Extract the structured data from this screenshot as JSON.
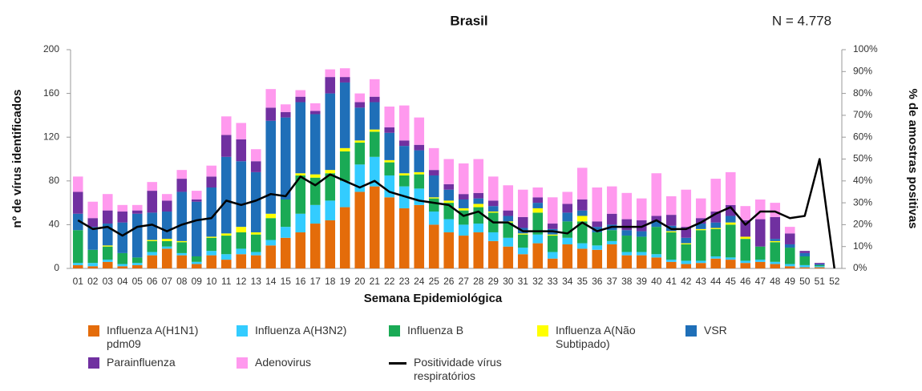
{
  "chart_data": {
    "type": "bar",
    "stacked": true,
    "title": "Brasil",
    "subtitle": "N = 4.778",
    "x_label": "Semana Epidemiológica",
    "y_label": "nº de vírus identificados",
    "y2_label": "% de amostras positivas",
    "categories": [
      "01",
      "02",
      "03",
      "04",
      "05",
      "06",
      "07",
      "08",
      "09",
      "10",
      "11",
      "12",
      "13",
      "14",
      "15",
      "16",
      "17",
      "18",
      "19",
      "20",
      "21",
      "22",
      "23",
      "24",
      "25",
      "26",
      "27",
      "28",
      "29",
      "30",
      "31",
      "32",
      "33",
      "34",
      "35",
      "36",
      "37",
      "38",
      "39",
      "40",
      "41",
      "42",
      "43",
      "44",
      "45",
      "46",
      "47",
      "48",
      "49",
      "50",
      "51",
      "52"
    ],
    "ylim": [
      0,
      200
    ],
    "yticks": [
      0,
      40,
      80,
      120,
      160,
      200
    ],
    "y2lim": [
      0,
      100
    ],
    "y2ticks": [
      {
        "value": 0,
        "label": "0%"
      },
      {
        "value": 10,
        "label": "10%"
      },
      {
        "value": 20,
        "label": "20%"
      },
      {
        "value": 30,
        "label": "30%"
      },
      {
        "value": 40,
        "label": "40%"
      },
      {
        "value": 50,
        "label": "50%"
      },
      {
        "value": 60,
        "label": "60%"
      },
      {
        "value": 70,
        "label": "70%"
      },
      {
        "value": 80,
        "label": "80%"
      },
      {
        "value": 90,
        "label": "90%"
      },
      {
        "value": 100,
        "label": "100%"
      }
    ],
    "grid": false,
    "series": [
      {
        "name": "Influenza A(H1N1) pdm09",
        "color": "#e46c0a",
        "values": [
          3,
          2,
          6,
          2,
          3,
          12,
          18,
          12,
          4,
          12,
          8,
          13,
          12,
          21,
          28,
          33,
          41,
          44,
          56,
          70,
          75,
          65,
          55,
          58,
          40,
          33,
          30,
          33,
          25,
          20,
          13,
          23,
          9,
          22,
          18,
          17,
          22,
          12,
          12,
          10,
          6,
          4,
          5,
          9,
          8,
          5,
          6,
          4,
          2,
          1,
          1,
          0
        ]
      },
      {
        "name": "Influenza A(H3N2)",
        "color": "#33ccff",
        "values": [
          2,
          3,
          2,
          2,
          2,
          3,
          2,
          2,
          2,
          4,
          5,
          5,
          3,
          5,
          10,
          17,
          17,
          18,
          24,
          25,
          27,
          20,
          20,
          15,
          12,
          12,
          10,
          8,
          8,
          8,
          6,
          8,
          6,
          6,
          5,
          4,
          3,
          3,
          3,
          3,
          2,
          3,
          2,
          2,
          2,
          2,
          2,
          2,
          2,
          2,
          1,
          0
        ]
      },
      {
        "name": "Influenza B",
        "color": "#1aaa55",
        "values": [
          30,
          12,
          12,
          10,
          5,
          10,
          5,
          10,
          5,
          12,
          17,
          15,
          16,
          20,
          25,
          35,
          25,
          25,
          27,
          20,
          23,
          12,
          10,
          13,
          12,
          15,
          13,
          15,
          18,
          14,
          12,
          20,
          15,
          15,
          20,
          12,
          10,
          15,
          14,
          25,
          25,
          15,
          28,
          25,
          30,
          20,
          12,
          18,
          15,
          8,
          1,
          0
        ]
      },
      {
        "name": "Influenza A(Não Subtipado)",
        "color": "#ffff00",
        "values": [
          0,
          0,
          1,
          0,
          0,
          1,
          2,
          1,
          0,
          1,
          2,
          5,
          2,
          4,
          0,
          2,
          3,
          3,
          3,
          2,
          2,
          2,
          2,
          2,
          1,
          2,
          2,
          3,
          1,
          1,
          1,
          4,
          1,
          0,
          5,
          0,
          0,
          0,
          0,
          0,
          1,
          1,
          1,
          1,
          2,
          2,
          0,
          1,
          0,
          0,
          0,
          0
        ]
      },
      {
        "name": "VSR",
        "color": "#1f6fb8",
        "values": [
          15,
          21,
          20,
          28,
          40,
          25,
          25,
          45,
          50,
          45,
          70,
          60,
          55,
          85,
          75,
          65,
          55,
          70,
          60,
          30,
          25,
          25,
          25,
          20,
          20,
          10,
          8,
          5,
          5,
          5,
          5,
          5,
          5,
          8,
          5,
          5,
          5,
          5,
          5,
          5,
          5,
          5,
          5,
          5,
          6,
          0,
          0,
          2,
          3,
          3,
          1,
          0
        ]
      },
      {
        "name": "Parainfluenza",
        "color": "#7030a0",
        "values": [
          20,
          8,
          12,
          10,
          3,
          20,
          10,
          12,
          2,
          10,
          20,
          20,
          10,
          12,
          5,
          5,
          3,
          15,
          5,
          5,
          5,
          5,
          5,
          5,
          5,
          5,
          5,
          5,
          5,
          5,
          10,
          5,
          5,
          8,
          10,
          5,
          10,
          10,
          10,
          5,
          10,
          10,
          5,
          10,
          10,
          15,
          25,
          20,
          10,
          2,
          1,
          0
        ]
      },
      {
        "name": "Adenovirus",
        "color": "#ff99ee",
        "values": [
          14,
          15,
          15,
          6,
          5,
          8,
          6,
          8,
          8,
          10,
          17,
          15,
          11,
          17,
          7,
          6,
          7,
          7,
          8,
          8,
          16,
          19,
          32,
          25,
          20,
          23,
          28,
          31,
          22,
          23,
          25,
          9,
          24,
          11,
          29,
          31,
          25,
          24,
          20,
          39,
          17,
          34,
          18,
          30,
          30,
          13,
          18,
          13,
          6,
          0,
          0,
          0
        ]
      },
      {
        "name": "Positividade vírus respiratórios",
        "color": "#000000",
        "type": "line",
        "axis": "y2",
        "values": [
          22,
          18,
          19,
          15,
          19,
          20,
          17,
          20,
          22,
          23,
          31,
          29,
          31,
          34,
          33,
          42,
          38,
          43,
          40,
          37,
          40,
          35,
          33,
          31,
          30,
          29,
          24,
          26,
          21,
          21,
          17,
          17,
          17,
          16,
          21,
          17,
          19,
          19,
          19,
          22,
          18,
          18,
          21,
          25,
          28,
          20,
          26,
          26,
          23,
          24,
          50,
          0
        ]
      }
    ]
  }
}
